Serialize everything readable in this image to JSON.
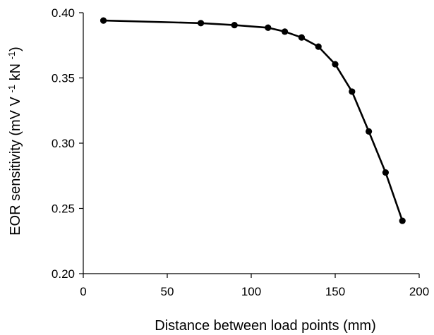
{
  "chart_data": {
    "type": "line",
    "title": "",
    "xlabel": "Distance between load points (mm)",
    "ylabel_parts": [
      {
        "text": "EOR sensitivity (mV V ",
        "sup": false
      },
      {
        "text": "-1",
        "sup": true
      },
      {
        "text": " kN ",
        "sup": false
      },
      {
        "text": "-1",
        "sup": true
      },
      {
        "text": ")",
        "sup": false
      }
    ],
    "xlim": [
      0,
      200
    ],
    "ylim": [
      0.2,
      0.4
    ],
    "xticks": [
      "0",
      "50",
      "100",
      "150",
      "200"
    ],
    "yticks": [
      "0.20",
      "0.25",
      "0.30",
      "0.35",
      "0.40"
    ],
    "grid": false,
    "legend": "none",
    "series": [
      {
        "x": [
          12,
          70,
          90,
          110,
          120,
          130,
          140,
          150,
          160,
          170,
          180,
          190
        ],
        "y": [
          0.394,
          0.392,
          0.3905,
          0.3885,
          0.3855,
          0.381,
          0.374,
          0.3605,
          0.3395,
          0.309,
          0.2775,
          0.2405
        ]
      }
    ]
  }
}
